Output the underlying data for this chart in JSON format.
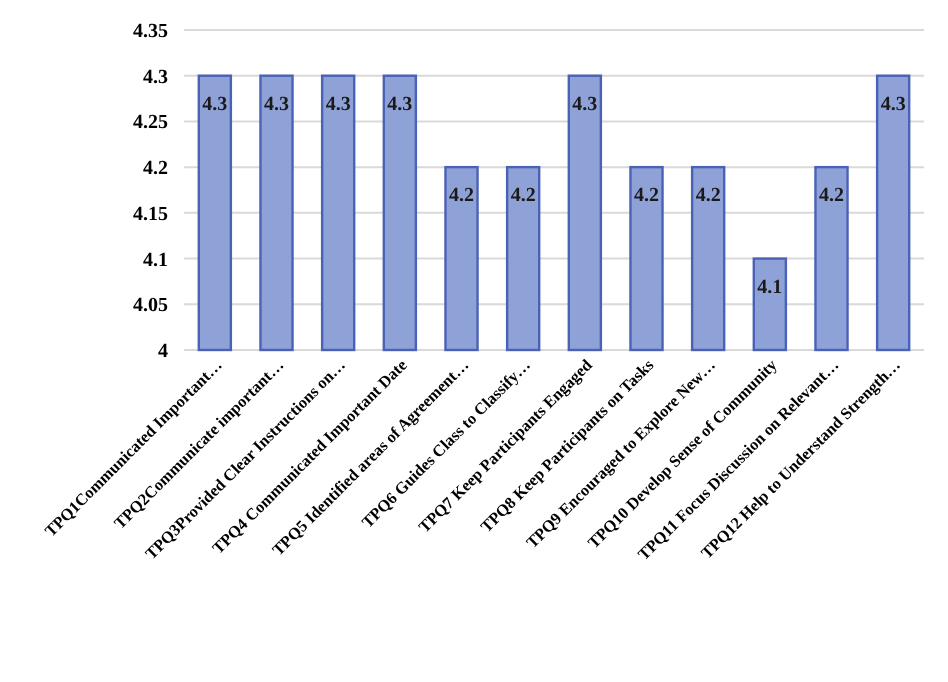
{
  "chart_data": {
    "type": "bar",
    "categories": [
      "TPQ1Communicated Important…",
      "TPQ2Communicate important…",
      "TPQ3Provided Clear Instructions on…",
      "TPQ4 Communicated Important Date",
      "TPQ5 Identified areas of Agreement…",
      "TPQ6 Guides Class to Classify…",
      "TPQ7 Keep Participants Engaged",
      "TPQ8 Keep Participants on Tasks",
      "TPQ9 Encouraged to Explore New…",
      "TPQ10 Develop Sense of Community",
      "TPQ11 Focus Discussion on Relevant…",
      "TPQ12 Help to Understand Strength…"
    ],
    "values": [
      4.3,
      4.3,
      4.3,
      4.3,
      4.2,
      4.2,
      4.3,
      4.2,
      4.2,
      4.1,
      4.2,
      4.3
    ],
    "color": "#8fa2d8",
    "ylim": [
      4,
      4.35
    ],
    "yticks": [
      4,
      4.05,
      4.1,
      4.15,
      4.2,
      4.25,
      4.3,
      4.35
    ],
    "grid": "y",
    "data_labels": true
  }
}
